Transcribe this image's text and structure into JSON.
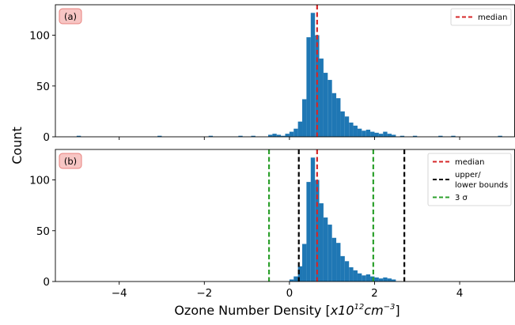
{
  "chart_data": {
    "type": "histogram",
    "ylabel": "Count",
    "xlabel_prefix": "Ozone Number Density [",
    "xlabel_unit": "x10",
    "xlabel_exp": "12",
    "xlabel_unit2": "cm",
    "xlabel_exp2": "−3",
    "xlabel_suffix": "]",
    "xlim": [
      -5.5,
      5.3
    ],
    "xticks": [
      -4,
      -2,
      0,
      2,
      4
    ],
    "xtick_labels": [
      "−4",
      "−2",
      "0",
      "2",
      "4"
    ],
    "bin_width": 0.1,
    "colors": {
      "bars": "#1f77b4",
      "median": "#d62728",
      "bounds": "#000000",
      "sigma": "#2ca02c",
      "tag_fill": "#f7c6c4",
      "tag_stroke": "#e8807c"
    },
    "panels": [
      {
        "tag": "(a)",
        "ylim": [
          0,
          130
        ],
        "yticks": [
          0,
          50,
          100
        ],
        "ytick_labels": [
          "0",
          "50",
          "100"
        ],
        "bins": [
          {
            "x": -5.0,
            "count": 1
          },
          {
            "x": -3.1,
            "count": 1
          },
          {
            "x": -1.9,
            "count": 1
          },
          {
            "x": -1.2,
            "count": 1
          },
          {
            "x": -0.9,
            "count": 1
          },
          {
            "x": -0.5,
            "count": 2
          },
          {
            "x": -0.4,
            "count": 3
          },
          {
            "x": -0.3,
            "count": 2
          },
          {
            "x": -0.2,
            "count": 1
          },
          {
            "x": -0.1,
            "count": 3
          },
          {
            "x": 0.0,
            "count": 5
          },
          {
            "x": 0.1,
            "count": 8
          },
          {
            "x": 0.2,
            "count": 15
          },
          {
            "x": 0.3,
            "count": 37
          },
          {
            "x": 0.4,
            "count": 98
          },
          {
            "x": 0.5,
            "count": 122
          },
          {
            "x": 0.6,
            "count": 100
          },
          {
            "x": 0.7,
            "count": 77
          },
          {
            "x": 0.8,
            "count": 63
          },
          {
            "x": 0.9,
            "count": 56
          },
          {
            "x": 1.0,
            "count": 43
          },
          {
            "x": 1.1,
            "count": 38
          },
          {
            "x": 1.2,
            "count": 25
          },
          {
            "x": 1.3,
            "count": 20
          },
          {
            "x": 1.4,
            "count": 14
          },
          {
            "x": 1.5,
            "count": 11
          },
          {
            "x": 1.6,
            "count": 8
          },
          {
            "x": 1.7,
            "count": 6
          },
          {
            "x": 1.8,
            "count": 7
          },
          {
            "x": 1.9,
            "count": 5
          },
          {
            "x": 2.0,
            "count": 4
          },
          {
            "x": 2.1,
            "count": 3
          },
          {
            "x": 2.2,
            "count": 5
          },
          {
            "x": 2.3,
            "count": 3
          },
          {
            "x": 2.4,
            "count": 2
          },
          {
            "x": 2.6,
            "count": 1
          },
          {
            "x": 2.9,
            "count": 1
          },
          {
            "x": 3.5,
            "count": 1
          },
          {
            "x": 3.8,
            "count": 1
          },
          {
            "x": 4.9,
            "count": 1
          }
        ],
        "lines": [
          {
            "x": 0.65,
            "kind": "median"
          }
        ],
        "legend": [
          {
            "label": "median",
            "kind": "median"
          }
        ]
      },
      {
        "tag": "(b)",
        "ylim": [
          0,
          130
        ],
        "yticks": [
          0,
          50,
          100
        ],
        "ytick_labels": [
          "0",
          "50",
          "100"
        ],
        "bins": [
          {
            "x": 0.0,
            "count": 2
          },
          {
            "x": 0.1,
            "count": 5
          },
          {
            "x": 0.2,
            "count": 15
          },
          {
            "x": 0.3,
            "count": 37
          },
          {
            "x": 0.4,
            "count": 98
          },
          {
            "x": 0.5,
            "count": 122
          },
          {
            "x": 0.6,
            "count": 100
          },
          {
            "x": 0.7,
            "count": 77
          },
          {
            "x": 0.8,
            "count": 63
          },
          {
            "x": 0.9,
            "count": 56
          },
          {
            "x": 1.0,
            "count": 43
          },
          {
            "x": 1.1,
            "count": 38
          },
          {
            "x": 1.2,
            "count": 25
          },
          {
            "x": 1.3,
            "count": 20
          },
          {
            "x": 1.4,
            "count": 14
          },
          {
            "x": 1.5,
            "count": 11
          },
          {
            "x": 1.6,
            "count": 8
          },
          {
            "x": 1.7,
            "count": 6
          },
          {
            "x": 1.8,
            "count": 7
          },
          {
            "x": 1.9,
            "count": 5
          },
          {
            "x": 2.0,
            "count": 4
          },
          {
            "x": 2.1,
            "count": 3
          },
          {
            "x": 2.2,
            "count": 4
          },
          {
            "x": 2.3,
            "count": 3
          },
          {
            "x": 2.4,
            "count": 2
          }
        ],
        "lines": [
          {
            "x": -0.48,
            "kind": "sigma"
          },
          {
            "x": 0.22,
            "kind": "bounds"
          },
          {
            "x": 0.65,
            "kind": "median"
          },
          {
            "x": 1.97,
            "kind": "sigma"
          },
          {
            "x": 2.7,
            "kind": "bounds"
          }
        ],
        "legend": [
          {
            "label": "median",
            "kind": "median"
          },
          {
            "label": "upper/",
            "label2": "lower bounds",
            "kind": "bounds"
          },
          {
            "label": "3 σ",
            "kind": "sigma"
          }
        ]
      }
    ]
  }
}
